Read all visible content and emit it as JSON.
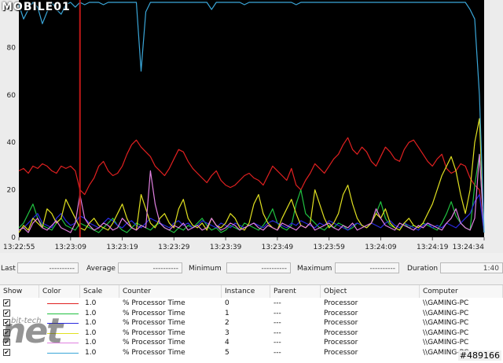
{
  "branding": {
    "logo": "MOBILE01",
    "watermark": "net",
    "watermark_sub": "bit-tech",
    "image_id": "#489166"
  },
  "chart_data": {
    "type": "line",
    "ylim": [
      0,
      100
    ],
    "yticks": [
      "0",
      "20",
      "40",
      "60",
      "80"
    ],
    "xticks": [
      "13:22:55",
      "13:23:09",
      "13:23:19",
      "13:23:29",
      "13:23:39",
      "13:23:49",
      "13:23:59",
      "13:24:09",
      "13:24:19",
      "13:24:34"
    ],
    "x_count": 100,
    "cursor_index": 13,
    "background": "#000000",
    "series": [
      {
        "color": "#e02020",
        "values": [
          28,
          29,
          27,
          30,
          29,
          31,
          30,
          28,
          27,
          30,
          29,
          30,
          28,
          20,
          18,
          22,
          25,
          30,
          32,
          28,
          26,
          27,
          30,
          35,
          39,
          41,
          38,
          36,
          34,
          30,
          28,
          26,
          29,
          33,
          37,
          36,
          32,
          29,
          27,
          25,
          23,
          26,
          28,
          24,
          22,
          21,
          22,
          24,
          26,
          27,
          25,
          24,
          22,
          26,
          30,
          28,
          26,
          24,
          29,
          22,
          20,
          24,
          27,
          31,
          29,
          27,
          30,
          33,
          35,
          39,
          42,
          37,
          35,
          38,
          36,
          32,
          30,
          34,
          38,
          36,
          33,
          32,
          37,
          40,
          41,
          38,
          35,
          32,
          30,
          33,
          35,
          29,
          27,
          28,
          31,
          30,
          25,
          22,
          20,
          2
        ]
      },
      {
        "color": "#20c040",
        "values": [
          4,
          6,
          10,
          14,
          8,
          5,
          4,
          3,
          6,
          8,
          5,
          4,
          3,
          6,
          5,
          4,
          3,
          2,
          4,
          6,
          8,
          5,
          3,
          2,
          4,
          6,
          5,
          4,
          3,
          5,
          6,
          4,
          3,
          2,
          4,
          3,
          5,
          4,
          6,
          8,
          5,
          3,
          4,
          2,
          3,
          5,
          4,
          3,
          6,
          5,
          4,
          3,
          5,
          8,
          12,
          6,
          4,
          3,
          5,
          14,
          20,
          10,
          8,
          6,
          4,
          3,
          5,
          4,
          6,
          5,
          3,
          4,
          6,
          5,
          4,
          6,
          10,
          15,
          8,
          5,
          4,
          3,
          6,
          4,
          5,
          4,
          6,
          5,
          4,
          3,
          6,
          10,
          15,
          9,
          6,
          4,
          3,
          22,
          35,
          2
        ]
      },
      {
        "color": "#2a2ae0",
        "values": [
          3,
          4,
          6,
          8,
          10,
          6,
          5,
          4,
          8,
          10,
          7,
          5,
          6,
          9,
          8,
          6,
          5,
          4,
          6,
          8,
          7,
          5,
          4,
          6,
          7,
          5,
          4,
          6,
          8,
          7,
          6,
          5,
          4,
          6,
          7,
          5,
          6,
          4,
          5,
          7,
          6,
          5,
          4,
          6,
          5,
          4,
          6,
          5,
          4,
          5,
          6,
          5,
          4,
          6,
          7,
          6,
          5,
          4,
          6,
          5,
          7,
          6,
          5,
          4,
          6,
          5,
          7,
          6,
          5,
          4,
          3,
          5,
          6,
          5,
          4,
          6,
          5,
          4,
          6,
          7,
          5,
          4,
          6,
          5,
          4,
          3,
          5,
          6,
          4,
          5,
          4,
          6,
          5,
          4,
          6,
          8,
          10,
          15,
          18,
          2
        ]
      },
      {
        "color": "#e0e020",
        "values": [
          2,
          5,
          3,
          8,
          6,
          4,
          12,
          10,
          6,
          8,
          16,
          12,
          8,
          4,
          3,
          6,
          8,
          5,
          4,
          3,
          6,
          10,
          14,
          8,
          4,
          3,
          18,
          12,
          6,
          4,
          8,
          10,
          6,
          4,
          12,
          16,
          8,
          5,
          4,
          6,
          3,
          8,
          5,
          4,
          6,
          10,
          8,
          4,
          3,
          6,
          14,
          18,
          10,
          6,
          4,
          3,
          8,
          12,
          16,
          10,
          5,
          4,
          6,
          20,
          14,
          8,
          4,
          6,
          10,
          18,
          22,
          14,
          8,
          5,
          4,
          6,
          10,
          8,
          12,
          6,
          4,
          3,
          6,
          8,
          5,
          4,
          6,
          10,
          14,
          20,
          26,
          30,
          34,
          28,
          18,
          10,
          20,
          40,
          50,
          2
        ]
      },
      {
        "color": "#e080e0",
        "values": [
          3,
          4,
          2,
          6,
          8,
          4,
          3,
          5,
          7,
          4,
          3,
          2,
          6,
          18,
          8,
          5,
          3,
          4,
          6,
          5,
          3,
          4,
          8,
          6,
          4,
          3,
          5,
          4,
          28,
          14,
          6,
          4,
          3,
          5,
          4,
          6,
          3,
          4,
          5,
          3,
          4,
          8,
          5,
          3,
          4,
          6,
          5,
          3,
          4,
          5,
          6,
          4,
          3,
          5,
          4,
          3,
          6,
          5,
          4,
          3,
          5,
          4,
          6,
          3,
          4,
          5,
          6,
          4,
          3,
          5,
          4,
          6,
          3,
          4,
          5,
          6,
          12,
          8,
          5,
          4,
          3,
          6,
          5,
          4,
          3,
          5,
          4,
          6,
          5,
          4,
          3,
          6,
          8,
          12,
          6,
          4,
          3,
          8,
          35,
          2
        ]
      },
      {
        "color": "#3aa6d8",
        "values": [
          98,
          92,
          96,
          99,
          97,
          90,
          95,
          99,
          96,
          94,
          98,
          99,
          97,
          99,
          98,
          99,
          99,
          99,
          98,
          99,
          99,
          99,
          99,
          99,
          99,
          99,
          70,
          95,
          99,
          99,
          99,
          99,
          99,
          99,
          99,
          99,
          99,
          99,
          99,
          99,
          99,
          96,
          99,
          99,
          99,
          99,
          99,
          99,
          98,
          99,
          99,
          99,
          99,
          99,
          99,
          99,
          99,
          99,
          99,
          98,
          99,
          99,
          99,
          99,
          99,
          99,
          99,
          99,
          99,
          99,
          99,
          99,
          99,
          99,
          99,
          99,
          99,
          99,
          99,
          99,
          99,
          99,
          99,
          99,
          99,
          99,
          99,
          99,
          99,
          99,
          99,
          99,
          99,
          99,
          99,
          99,
          96,
          92,
          60,
          2
        ]
      }
    ]
  },
  "stats": {
    "last_label": "Last",
    "last_value": "----------",
    "average_label": "Average",
    "average_value": "----------",
    "minimum_label": "Minimum",
    "minimum_value": "----------",
    "maximum_label": "Maximum",
    "maximum_value": "----------",
    "duration_label": "Duration",
    "duration_value": "1:40"
  },
  "table": {
    "headers": [
      "Show",
      "Color",
      "Scale",
      "Counter",
      "Instance",
      "Parent",
      "Object",
      "Computer"
    ],
    "rows": [
      {
        "color": "#e02020",
        "scale": "1.0",
        "counter": "% Processor Time",
        "instance": "0",
        "parent": "---",
        "object": "Processor",
        "computer": "\\\\GAMING-PC"
      },
      {
        "color": "#20c040",
        "scale": "1.0",
        "counter": "% Processor Time",
        "instance": "1",
        "parent": "---",
        "object": "Processor",
        "computer": "\\\\GAMING-PC"
      },
      {
        "color": "#2a2ae0",
        "scale": "1.0",
        "counter": "% Processor Time",
        "instance": "2",
        "parent": "---",
        "object": "Processor",
        "computer": "\\\\GAMING-PC"
      },
      {
        "color": "#e0e020",
        "scale": "1.0",
        "counter": "% Processor Time",
        "instance": "3",
        "parent": "---",
        "object": "Processor",
        "computer": "\\\\GAMING-PC"
      },
      {
        "color": "#e080e0",
        "scale": "1.0",
        "counter": "% Processor Time",
        "instance": "4",
        "parent": "---",
        "object": "Processor",
        "computer": "\\\\GAMING-PC"
      },
      {
        "color": "#3aa6d8",
        "scale": "1.0",
        "counter": "% Processor Time",
        "instance": "5",
        "parent": "---",
        "object": "Processor",
        "computer": "\\\\GAMING-PC"
      }
    ]
  }
}
